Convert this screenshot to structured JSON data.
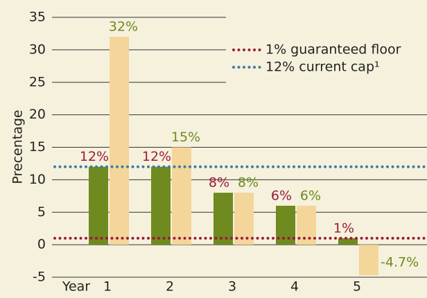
{
  "chart_data": {
    "type": "bar",
    "y_label": "Precentage",
    "x_label": "Year",
    "categories": [
      "1",
      "2",
      "3",
      "4",
      "5"
    ],
    "series": [
      {
        "color": "#6f8a1e",
        "label_color": "#9b1b3c",
        "values": [
          12,
          12,
          8,
          6,
          1
        ],
        "value_labels": [
          "12%",
          "12%",
          "8%",
          "6%",
          "1%"
        ]
      },
      {
        "color": "#f4d59a",
        "label_color": "#6f8a1e",
        "values": [
          32,
          15,
          8,
          6,
          -4.7
        ],
        "value_labels": [
          "32%",
          "15%",
          "8%",
          "6%",
          "-4.7%"
        ]
      }
    ],
    "reference_lines": [
      {
        "value": 1,
        "label": "1% guaranteed floor",
        "color": "#9b1b3c"
      },
      {
        "value": 12,
        "label": "12% current cap¹",
        "color": "#3b7ba6"
      }
    ],
    "ylim": [
      -5,
      35
    ],
    "yticks": [
      -5,
      0,
      5,
      10,
      15,
      20,
      25,
      30,
      35
    ],
    "grid": true
  }
}
